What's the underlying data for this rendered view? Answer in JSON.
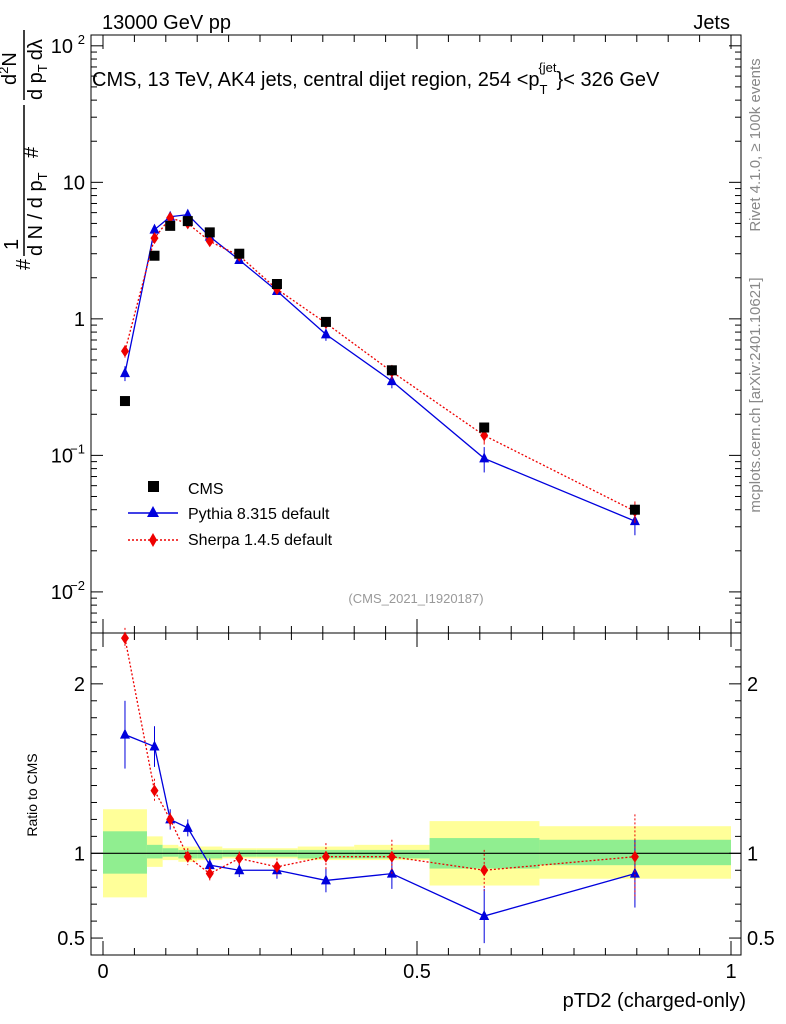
{
  "header": {
    "left": "13000 GeV pp",
    "right": "Jets"
  },
  "side_labels": {
    "rivet": "Rivet 4.1.0, ≥ 100k events",
    "mcplots": "mcplots.cern.ch [arXiv:2401.10621]"
  },
  "watermark": "(CMS_2021_I1920187)",
  "chart_data": {
    "type": "scatter",
    "title": "CMS, 13 TeV, AK4 jets, central dijet region, 254 < p_T^{jet} < 326 GeV",
    "title_parts": {
      "prefix": "CMS, 13 TeV, AK4 jets, central dijet region, 254 <p",
      "sub": "T",
      "sup": "{jet",
      "suffix": "}< 326 GeV"
    },
    "xlabel": "pTD2 (charged-only)",
    "ylabel_upper": "1/dN/dp_T # d^2N / d p_T d lambda",
    "ylabel_upper_parts": {
      "hash": "#",
      "one": "1",
      "denominator": "d N / d p",
      "sub": "T",
      "num_top": "d",
      "num_sup": "2",
      "num_N": "N",
      "den2": "d p",
      "den2_sub": "T",
      "den2_end": "dλ"
    },
    "ylabel_lower": "Ratio to CMS",
    "xlim": [
      0,
      1
    ],
    "ylim_upper": [
      0.005,
      120
    ],
    "ylim_lower": [
      0.4,
      2.3
    ],
    "x_ticks": [
      0,
      0.5,
      1
    ],
    "x_tick_labels": [
      "0",
      "0.5",
      "1"
    ],
    "upper_ticks": [
      {
        "value": 0.01,
        "base": "10",
        "exp": "−2"
      },
      {
        "value": 0.1,
        "base": "10",
        "exp": "−1"
      },
      {
        "value": 1,
        "base": "1",
        "exp": ""
      },
      {
        "value": 10,
        "base": "10",
        "exp": ""
      },
      {
        "value": 100,
        "base": "10",
        "exp": "2"
      }
    ],
    "lower_ticks": [
      {
        "value": 0.5,
        "label": "0.5"
      },
      {
        "value": 1,
        "label": "1"
      },
      {
        "value": 2,
        "label": "2"
      }
    ],
    "bin_edges": [
      0.0,
      0.07,
      0.095,
      0.12,
      0.15,
      0.19,
      0.245,
      0.31,
      0.4,
      0.52,
      0.695,
      1.0
    ],
    "x": [
      0.035,
      0.082,
      0.107,
      0.135,
      0.17,
      0.217,
      0.277,
      0.355,
      0.46,
      0.607,
      0.847
    ],
    "legend": [
      "CMS",
      "Pythia 8.315 default",
      "Sherpa 1.4.5 default"
    ],
    "series": [
      {
        "name": "CMS",
        "color": "#000000",
        "marker": "square",
        "values": [
          0.25,
          2.9,
          4.8,
          5.2,
          4.3,
          3.0,
          1.8,
          0.95,
          0.42,
          0.16,
          0.04
        ]
      },
      {
        "name": "Pythia 8.315 default",
        "color": "#0000dd",
        "marker": "triangle",
        "line": "solid",
        "values": [
          0.4,
          4.5,
          5.6,
          5.8,
          4.0,
          2.7,
          1.6,
          0.77,
          0.35,
          0.095,
          0.033
        ],
        "err_low": [
          0.05,
          0.3,
          0.3,
          0.3,
          0.2,
          0.15,
          0.1,
          0.08,
          0.04,
          0.02,
          0.007
        ],
        "err_high": [
          0.05,
          0.3,
          0.3,
          0.3,
          0.2,
          0.15,
          0.1,
          0.08,
          0.04,
          0.02,
          0.007
        ],
        "ratio": [
          1.7,
          1.63,
          1.2,
          1.15,
          0.93,
          0.9,
          0.9,
          0.84,
          0.88,
          0.63,
          0.88
        ],
        "ratio_err": [
          0.2,
          0.12,
          0.06,
          0.05,
          0.04,
          0.04,
          0.05,
          0.07,
          0.09,
          0.16,
          0.2
        ]
      },
      {
        "name": "Sherpa 1.4.5 default",
        "color": "#ee0000",
        "marker": "diamond",
        "line": "dotted",
        "values": [
          0.58,
          3.9,
          5.5,
          5.0,
          3.7,
          2.9,
          1.65,
          0.93,
          0.41,
          0.14,
          0.039
        ],
        "err_low": [
          0.06,
          0.3,
          0.3,
          0.25,
          0.2,
          0.15,
          0.1,
          0.08,
          0.05,
          0.02,
          0.007
        ],
        "err_high": [
          0.06,
          0.3,
          0.3,
          0.25,
          0.2,
          0.15,
          0.1,
          0.08,
          0.05,
          0.02,
          0.007
        ],
        "ratio": [
          2.27,
          1.37,
          1.2,
          0.98,
          0.88,
          0.97,
          0.92,
          0.98,
          0.98,
          0.9,
          0.98
        ],
        "ratio_err": [
          0.06,
          0.07,
          0.04,
          0.05,
          0.04,
          0.04,
          0.05,
          0.08,
          0.1,
          0.12,
          0.25
        ]
      }
    ],
    "uncertainty_bands": {
      "stat_green_low": [
        0.88,
        0.97,
        0.98,
        0.97,
        0.97,
        0.98,
        0.98,
        0.97,
        0.97,
        0.91,
        0.93
      ],
      "stat_green_high": [
        1.13,
        1.05,
        1.03,
        1.02,
        1.02,
        1.02,
        1.02,
        1.02,
        1.02,
        1.09,
        1.08
      ],
      "total_yellow_low": [
        0.74,
        0.92,
        0.96,
        0.95,
        0.96,
        0.97,
        0.97,
        0.96,
        0.96,
        0.81,
        0.85
      ],
      "total_yellow_high": [
        1.26,
        1.1,
        1.05,
        1.04,
        1.04,
        1.03,
        1.03,
        1.04,
        1.05,
        1.19,
        1.16
      ],
      "green_color": "#90ee90",
      "yellow_color": "#ffff99"
    }
  }
}
